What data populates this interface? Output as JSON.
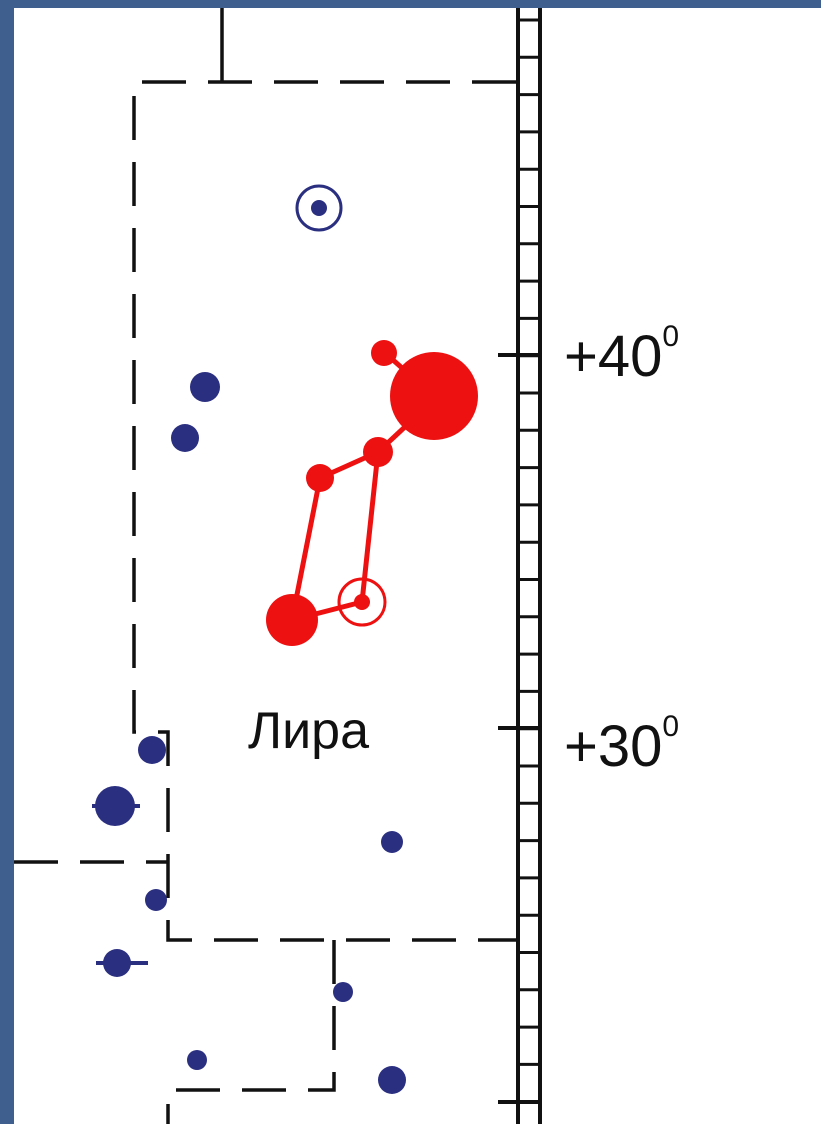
{
  "constellation": {
    "name": "Лира",
    "highlight_color": "#ee1111",
    "star_color": "#2b2f80"
  },
  "declination_labels": [
    {
      "value": "+40",
      "degree_mark": "0"
    },
    {
      "value": "+30",
      "degree_mark": "0"
    }
  ],
  "colors": {
    "frame_background": "#3f5f8f",
    "chart_background": "#ffffff",
    "grid_line": "#111111"
  }
}
